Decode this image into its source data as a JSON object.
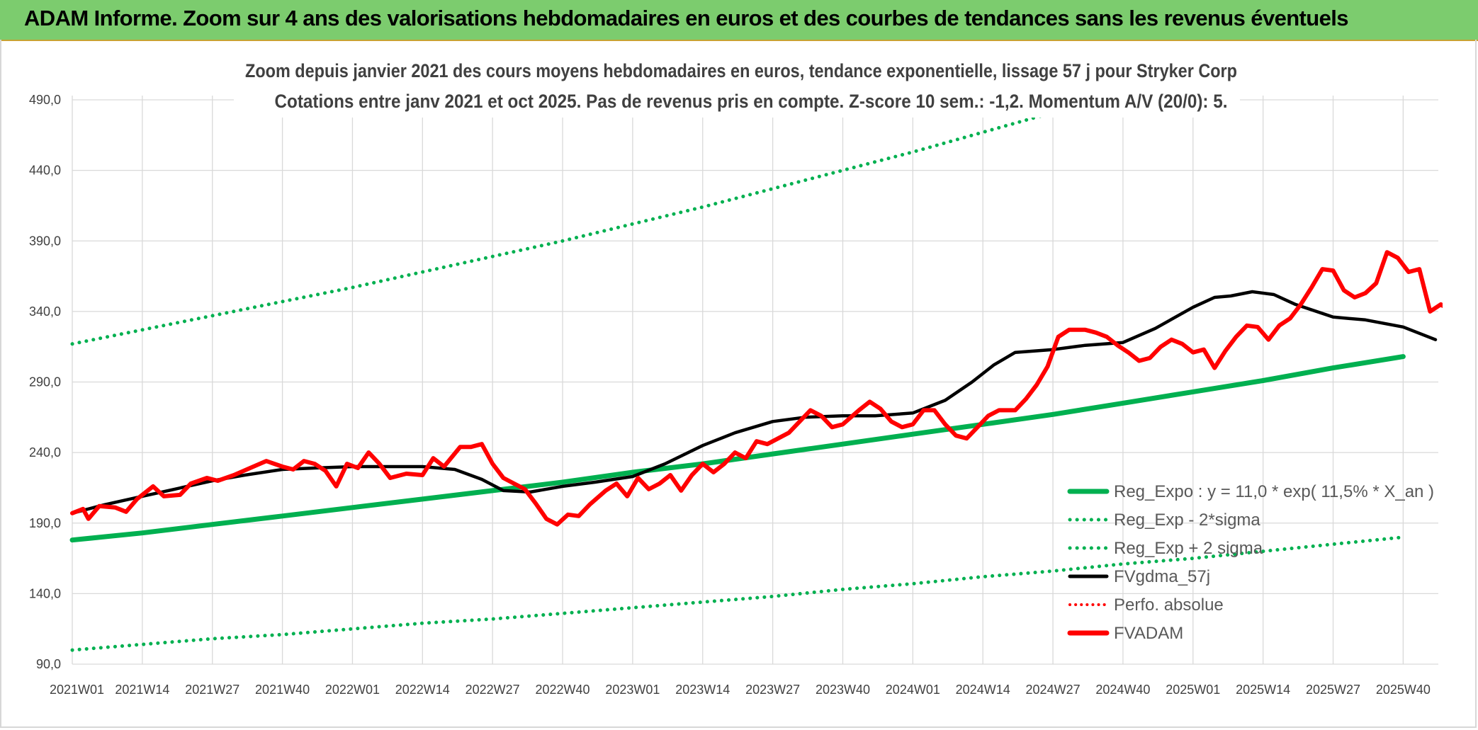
{
  "banner": {
    "title": "ADAM Informe. Zoom sur 4 ans des valorisations hebdomadaires en euros et des courbes de tendances sans les revenus éventuels"
  },
  "colors": {
    "banner": "#7ccc6e",
    "regExpo": "#00b050",
    "fvgdma": "#000000",
    "fvadam": "#ff0000",
    "perfo": "#ff0000",
    "grid": "#d9d9d9"
  },
  "chart_data": {
    "type": "line",
    "title": "Zoom depuis janvier 2021 des cours moyens hebdomadaires en euros, tendance exponentielle, lissage 57 j pour Stryker Corp",
    "subtitle": "Cotations entre janv 2021 et oct 2025. Pas de revenus pris en compte. Z-score 10 sem.: -1,2. Momentum A/V (20/0): 5.",
    "xlabel": "",
    "ylabel": "",
    "ylim": [
      90,
      490
    ],
    "yticks": [
      "90,0",
      "140,0",
      "190,0",
      "240,0",
      "290,0",
      "340,0",
      "390,0",
      "440,0",
      "490,0"
    ],
    "xticks": [
      "2021W01",
      "2021W14",
      "2021W27",
      "2021W40",
      "2022W01",
      "2022W14",
      "2022W27",
      "2022W40",
      "2023W01",
      "2023W14",
      "2023W27",
      "2023W40",
      "2024W01",
      "2024W14",
      "2024W27",
      "2024W40",
      "2025W01",
      "2025W14",
      "2025W27",
      "2025W40"
    ],
    "legend": [
      {
        "key": "regExpo",
        "label": "Reg_Expo : y = 11,0 * exp( 11,5% *  X_an )"
      },
      {
        "key": "regMinus",
        "label": "Reg_Exp - 2*sigma"
      },
      {
        "key": "regPlus",
        "label": "Reg_Exp + 2 sigma"
      },
      {
        "key": "fvgdma",
        "label": "FVgdma_57j"
      },
      {
        "key": "perfo",
        "label": "Perfo. absolue"
      },
      {
        "key": "fvadam",
        "label": "FVADAM"
      }
    ],
    "series": [
      {
        "name": "Reg_Expo",
        "anchors": [
          [
            0,
            178
          ],
          [
            13,
            183
          ],
          [
            26,
            189
          ],
          [
            39,
            195
          ],
          [
            52,
            201
          ],
          [
            65,
            207
          ],
          [
            78,
            213
          ],
          [
            91,
            219
          ],
          [
            104,
            226
          ],
          [
            117,
            232
          ],
          [
            130,
            239
          ],
          [
            143,
            246
          ],
          [
            156,
            253
          ],
          [
            169,
            260
          ],
          [
            182,
            267
          ],
          [
            195,
            275
          ],
          [
            208,
            283
          ],
          [
            221,
            291
          ],
          [
            234,
            300
          ],
          [
            247,
            308
          ]
        ]
      },
      {
        "name": "Reg_Exp - 2*sigma",
        "anchors": [
          [
            0,
            100
          ],
          [
            13,
            104
          ],
          [
            26,
            108
          ],
          [
            39,
            111
          ],
          [
            52,
            115
          ],
          [
            65,
            119
          ],
          [
            78,
            122
          ],
          [
            91,
            126
          ],
          [
            104,
            130
          ],
          [
            117,
            134
          ],
          [
            130,
            138
          ],
          [
            143,
            143
          ],
          [
            156,
            147
          ],
          [
            169,
            152
          ],
          [
            182,
            156
          ],
          [
            195,
            161
          ],
          [
            208,
            165
          ],
          [
            221,
            170
          ],
          [
            234,
            175
          ],
          [
            247,
            180
          ]
        ]
      },
      {
        "name": "Reg_Exp + 2 sigma",
        "anchors": [
          [
            0,
            317
          ],
          [
            13,
            327
          ],
          [
            26,
            337
          ],
          [
            39,
            347
          ],
          [
            52,
            357
          ],
          [
            65,
            368
          ],
          [
            78,
            379
          ],
          [
            91,
            390
          ],
          [
            104,
            402
          ],
          [
            117,
            414
          ],
          [
            130,
            427
          ],
          [
            143,
            440
          ],
          [
            156,
            453
          ],
          [
            169,
            467
          ],
          [
            182,
            481
          ],
          [
            195,
            495
          ],
          [
            208,
            510
          ],
          [
            221,
            525
          ],
          [
            234,
            541
          ],
          [
            247,
            557
          ]
        ]
      },
      {
        "name": "FVgdma_57j",
        "anchors": [
          [
            0,
            197
          ],
          [
            6,
            203
          ],
          [
            13,
            209
          ],
          [
            19,
            214
          ],
          [
            26,
            220
          ],
          [
            32,
            224
          ],
          [
            39,
            228
          ],
          [
            45,
            229
          ],
          [
            52,
            230
          ],
          [
            58,
            230
          ],
          [
            65,
            230
          ],
          [
            71,
            228
          ],
          [
            76,
            221
          ],
          [
            80,
            213
          ],
          [
            85,
            212
          ],
          [
            91,
            216
          ],
          [
            97,
            219
          ],
          [
            104,
            223
          ],
          [
            110,
            232
          ],
          [
            117,
            245
          ],
          [
            123,
            254
          ],
          [
            130,
            262
          ],
          [
            136,
            265
          ],
          [
            143,
            266
          ],
          [
            149,
            266
          ],
          [
            156,
            268
          ],
          [
            162,
            277
          ],
          [
            167,
            290
          ],
          [
            171,
            302
          ],
          [
            175,
            311
          ],
          [
            182,
            313
          ],
          [
            188,
            316
          ],
          [
            195,
            318
          ],
          [
            201,
            328
          ],
          [
            208,
            343
          ],
          [
            212,
            350
          ],
          [
            215,
            351
          ],
          [
            219,
            354
          ],
          [
            223,
            352
          ],
          [
            227,
            345
          ],
          [
            234,
            336
          ],
          [
            240,
            334
          ],
          [
            247,
            329
          ],
          [
            253,
            320
          ]
        ]
      },
      {
        "name": "FVADAM",
        "anchors": [
          [
            0,
            197
          ],
          [
            2,
            200
          ],
          [
            3,
            193
          ],
          [
            5,
            202
          ],
          [
            8,
            201
          ],
          [
            10,
            198
          ],
          [
            12,
            207
          ],
          [
            15,
            216
          ],
          [
            17,
            209
          ],
          [
            20,
            210
          ],
          [
            22,
            218
          ],
          [
            25,
            222
          ],
          [
            27,
            220
          ],
          [
            30,
            224
          ],
          [
            33,
            229
          ],
          [
            36,
            234
          ],
          [
            39,
            230
          ],
          [
            41,
            228
          ],
          [
            43,
            234
          ],
          [
            45,
            232
          ],
          [
            47,
            227
          ],
          [
            49,
            216
          ],
          [
            51,
            232
          ],
          [
            53,
            229
          ],
          [
            55,
            240
          ],
          [
            57,
            232
          ],
          [
            59,
            222
          ],
          [
            62,
            225
          ],
          [
            65,
            224
          ],
          [
            67,
            236
          ],
          [
            69,
            230
          ],
          [
            72,
            244
          ],
          [
            74,
            244
          ],
          [
            76,
            246
          ],
          [
            78,
            232
          ],
          [
            80,
            222
          ],
          [
            82,
            218
          ],
          [
            84,
            214
          ],
          [
            86,
            204
          ],
          [
            88,
            193
          ],
          [
            90,
            189
          ],
          [
            92,
            196
          ],
          [
            94,
            195
          ],
          [
            96,
            203
          ],
          [
            99,
            213
          ],
          [
            101,
            218
          ],
          [
            103,
            209
          ],
          [
            105,
            222
          ],
          [
            107,
            214
          ],
          [
            109,
            218
          ],
          [
            111,
            224
          ],
          [
            113,
            213
          ],
          [
            115,
            224
          ],
          [
            117,
            232
          ],
          [
            119,
            226
          ],
          [
            121,
            232
          ],
          [
            123,
            240
          ],
          [
            125,
            236
          ],
          [
            127,
            248
          ],
          [
            129,
            246
          ],
          [
            131,
            250
          ],
          [
            133,
            254
          ],
          [
            135,
            262
          ],
          [
            137,
            270
          ],
          [
            139,
            266
          ],
          [
            141,
            258
          ],
          [
            143,
            260
          ],
          [
            146,
            270
          ],
          [
            148,
            276
          ],
          [
            150,
            271
          ],
          [
            152,
            262
          ],
          [
            154,
            258
          ],
          [
            156,
            260
          ],
          [
            158,
            270
          ],
          [
            160,
            270
          ],
          [
            162,
            260
          ],
          [
            164,
            252
          ],
          [
            166,
            250
          ],
          [
            168,
            258
          ],
          [
            170,
            266
          ],
          [
            172,
            270
          ],
          [
            175,
            270
          ],
          [
            177,
            278
          ],
          [
            179,
            288
          ],
          [
            181,
            301
          ],
          [
            183,
            322
          ],
          [
            185,
            327
          ],
          [
            188,
            327
          ],
          [
            190,
            325
          ],
          [
            192,
            322
          ],
          [
            194,
            316
          ],
          [
            196,
            311
          ],
          [
            198,
            305
          ],
          [
            200,
            307
          ],
          [
            202,
            315
          ],
          [
            204,
            320
          ],
          [
            206,
            317
          ],
          [
            208,
            311
          ],
          [
            210,
            313
          ],
          [
            212,
            300
          ],
          [
            214,
            312
          ],
          [
            216,
            322
          ],
          [
            218,
            330
          ],
          [
            220,
            329
          ],
          [
            222,
            320
          ],
          [
            224,
            330
          ],
          [
            226,
            335
          ],
          [
            228,
            345
          ],
          [
            230,
            357
          ],
          [
            232,
            370
          ],
          [
            234,
            369
          ],
          [
            236,
            355
          ],
          [
            238,
            350
          ],
          [
            240,
            353
          ],
          [
            242,
            360
          ],
          [
            244,
            382
          ],
          [
            246,
            378
          ],
          [
            248,
            368
          ],
          [
            250,
            370
          ],
          [
            252,
            340
          ],
          [
            254,
            345
          ],
          [
            256,
            340
          ],
          [
            258,
            315
          ],
          [
            260,
            314
          ],
          [
            262,
            335
          ],
          [
            264,
            348
          ],
          [
            266,
            340
          ],
          [
            268,
            334
          ],
          [
            270,
            326
          ],
          [
            272,
            335
          ],
          [
            274,
            333
          ],
          [
            276,
            336
          ],
          [
            278,
            342
          ],
          [
            280,
            327
          ],
          [
            282,
            336
          ],
          [
            284,
            333
          ],
          [
            286,
            320
          ],
          [
            288,
            312
          ]
        ]
      }
    ]
  }
}
